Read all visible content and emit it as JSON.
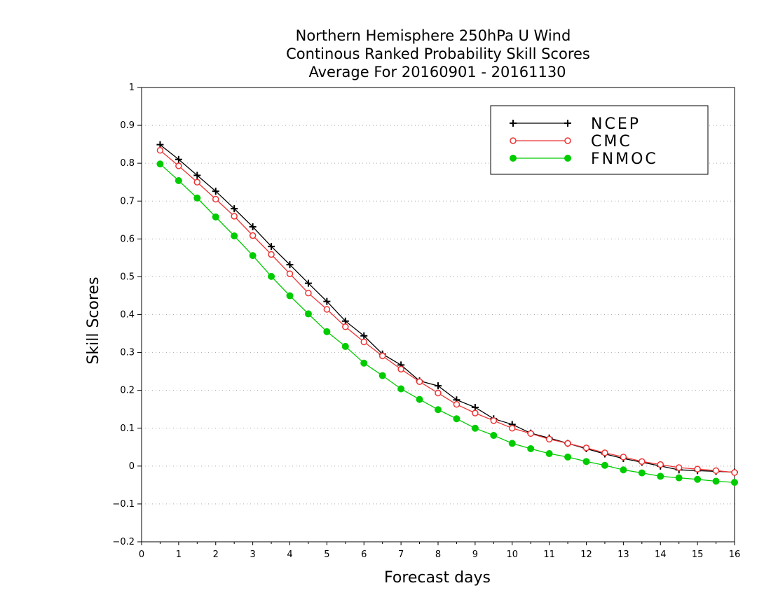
{
  "chart_data": {
    "type": "line",
    "title": [
      "Northern Hemisphere 250hPa U Wind",
      "Continous Ranked Probability Skill Scores",
      "Average For 20160901 - 20161130"
    ],
    "xlabel": "Forecast days",
    "ylabel": "Skill Scores",
    "xlim": [
      0,
      16
    ],
    "ylim": [
      -0.2,
      1
    ],
    "xticks": [
      0,
      1,
      2,
      3,
      4,
      5,
      6,
      7,
      8,
      9,
      10,
      11,
      12,
      13,
      14,
      15,
      16
    ],
    "yticks": [
      -0.2,
      -0.1,
      0,
      0.1,
      0.2,
      0.3,
      0.4,
      0.5,
      0.6,
      0.7,
      0.8,
      0.9,
      1
    ],
    "ytick_labels": [
      "−0.2",
      "−0.1",
      "0",
      "0.1",
      "0.2",
      "0.3",
      "0.4",
      "0.5",
      "0.6",
      "0.7",
      "0.8",
      "0.9",
      "1"
    ],
    "grid": "horizontal dotted",
    "legend_position": "top-right",
    "x": [
      0.5,
      1,
      1.5,
      2,
      2.5,
      3,
      3.5,
      4,
      4.5,
      5,
      5.5,
      6,
      6.5,
      7,
      7.5,
      8,
      8.5,
      9,
      9.5,
      10,
      10.5,
      11,
      11.5,
      12,
      12.5,
      13,
      13.5,
      14,
      14.5,
      15,
      15.5,
      16
    ],
    "series": [
      {
        "name": "NCEP",
        "color": "#000000",
        "marker": "plus",
        "values": [
          0.849,
          0.81,
          0.768,
          0.726,
          0.68,
          0.632,
          0.58,
          0.532,
          0.483,
          0.435,
          0.383,
          0.344,
          0.296,
          0.267,
          0.225,
          0.212,
          0.175,
          0.155,
          0.125,
          0.11,
          0.087,
          0.074,
          0.06,
          0.046,
          0.032,
          0.02,
          0.01,
          0.0,
          -0.01,
          -0.012,
          -0.014,
          -0.016
        ]
      },
      {
        "name": "CMC",
        "color": "#ee3333",
        "marker": "open-circle",
        "values": [
          0.834,
          0.793,
          0.75,
          0.705,
          0.66,
          0.609,
          0.559,
          0.508,
          0.457,
          0.414,
          0.368,
          0.328,
          0.291,
          0.256,
          0.223,
          0.193,
          0.163,
          0.14,
          0.12,
          0.1,
          0.086,
          0.071,
          0.06,
          0.048,
          0.035,
          0.024,
          0.012,
          0.004,
          -0.004,
          -0.008,
          -0.012,
          -0.017
        ]
      },
      {
        "name": "FNMOC",
        "color": "#00cc00",
        "marker": "filled-circle",
        "values": [
          0.798,
          0.754,
          0.708,
          0.658,
          0.608,
          0.556,
          0.501,
          0.45,
          0.402,
          0.355,
          0.316,
          0.272,
          0.239,
          0.204,
          0.176,
          0.149,
          0.125,
          0.1,
          0.081,
          0.06,
          0.046,
          0.033,
          0.024,
          0.012,
          0.002,
          -0.01,
          -0.018,
          -0.027,
          -0.031,
          -0.035,
          -0.04,
          -0.043
        ]
      }
    ]
  }
}
